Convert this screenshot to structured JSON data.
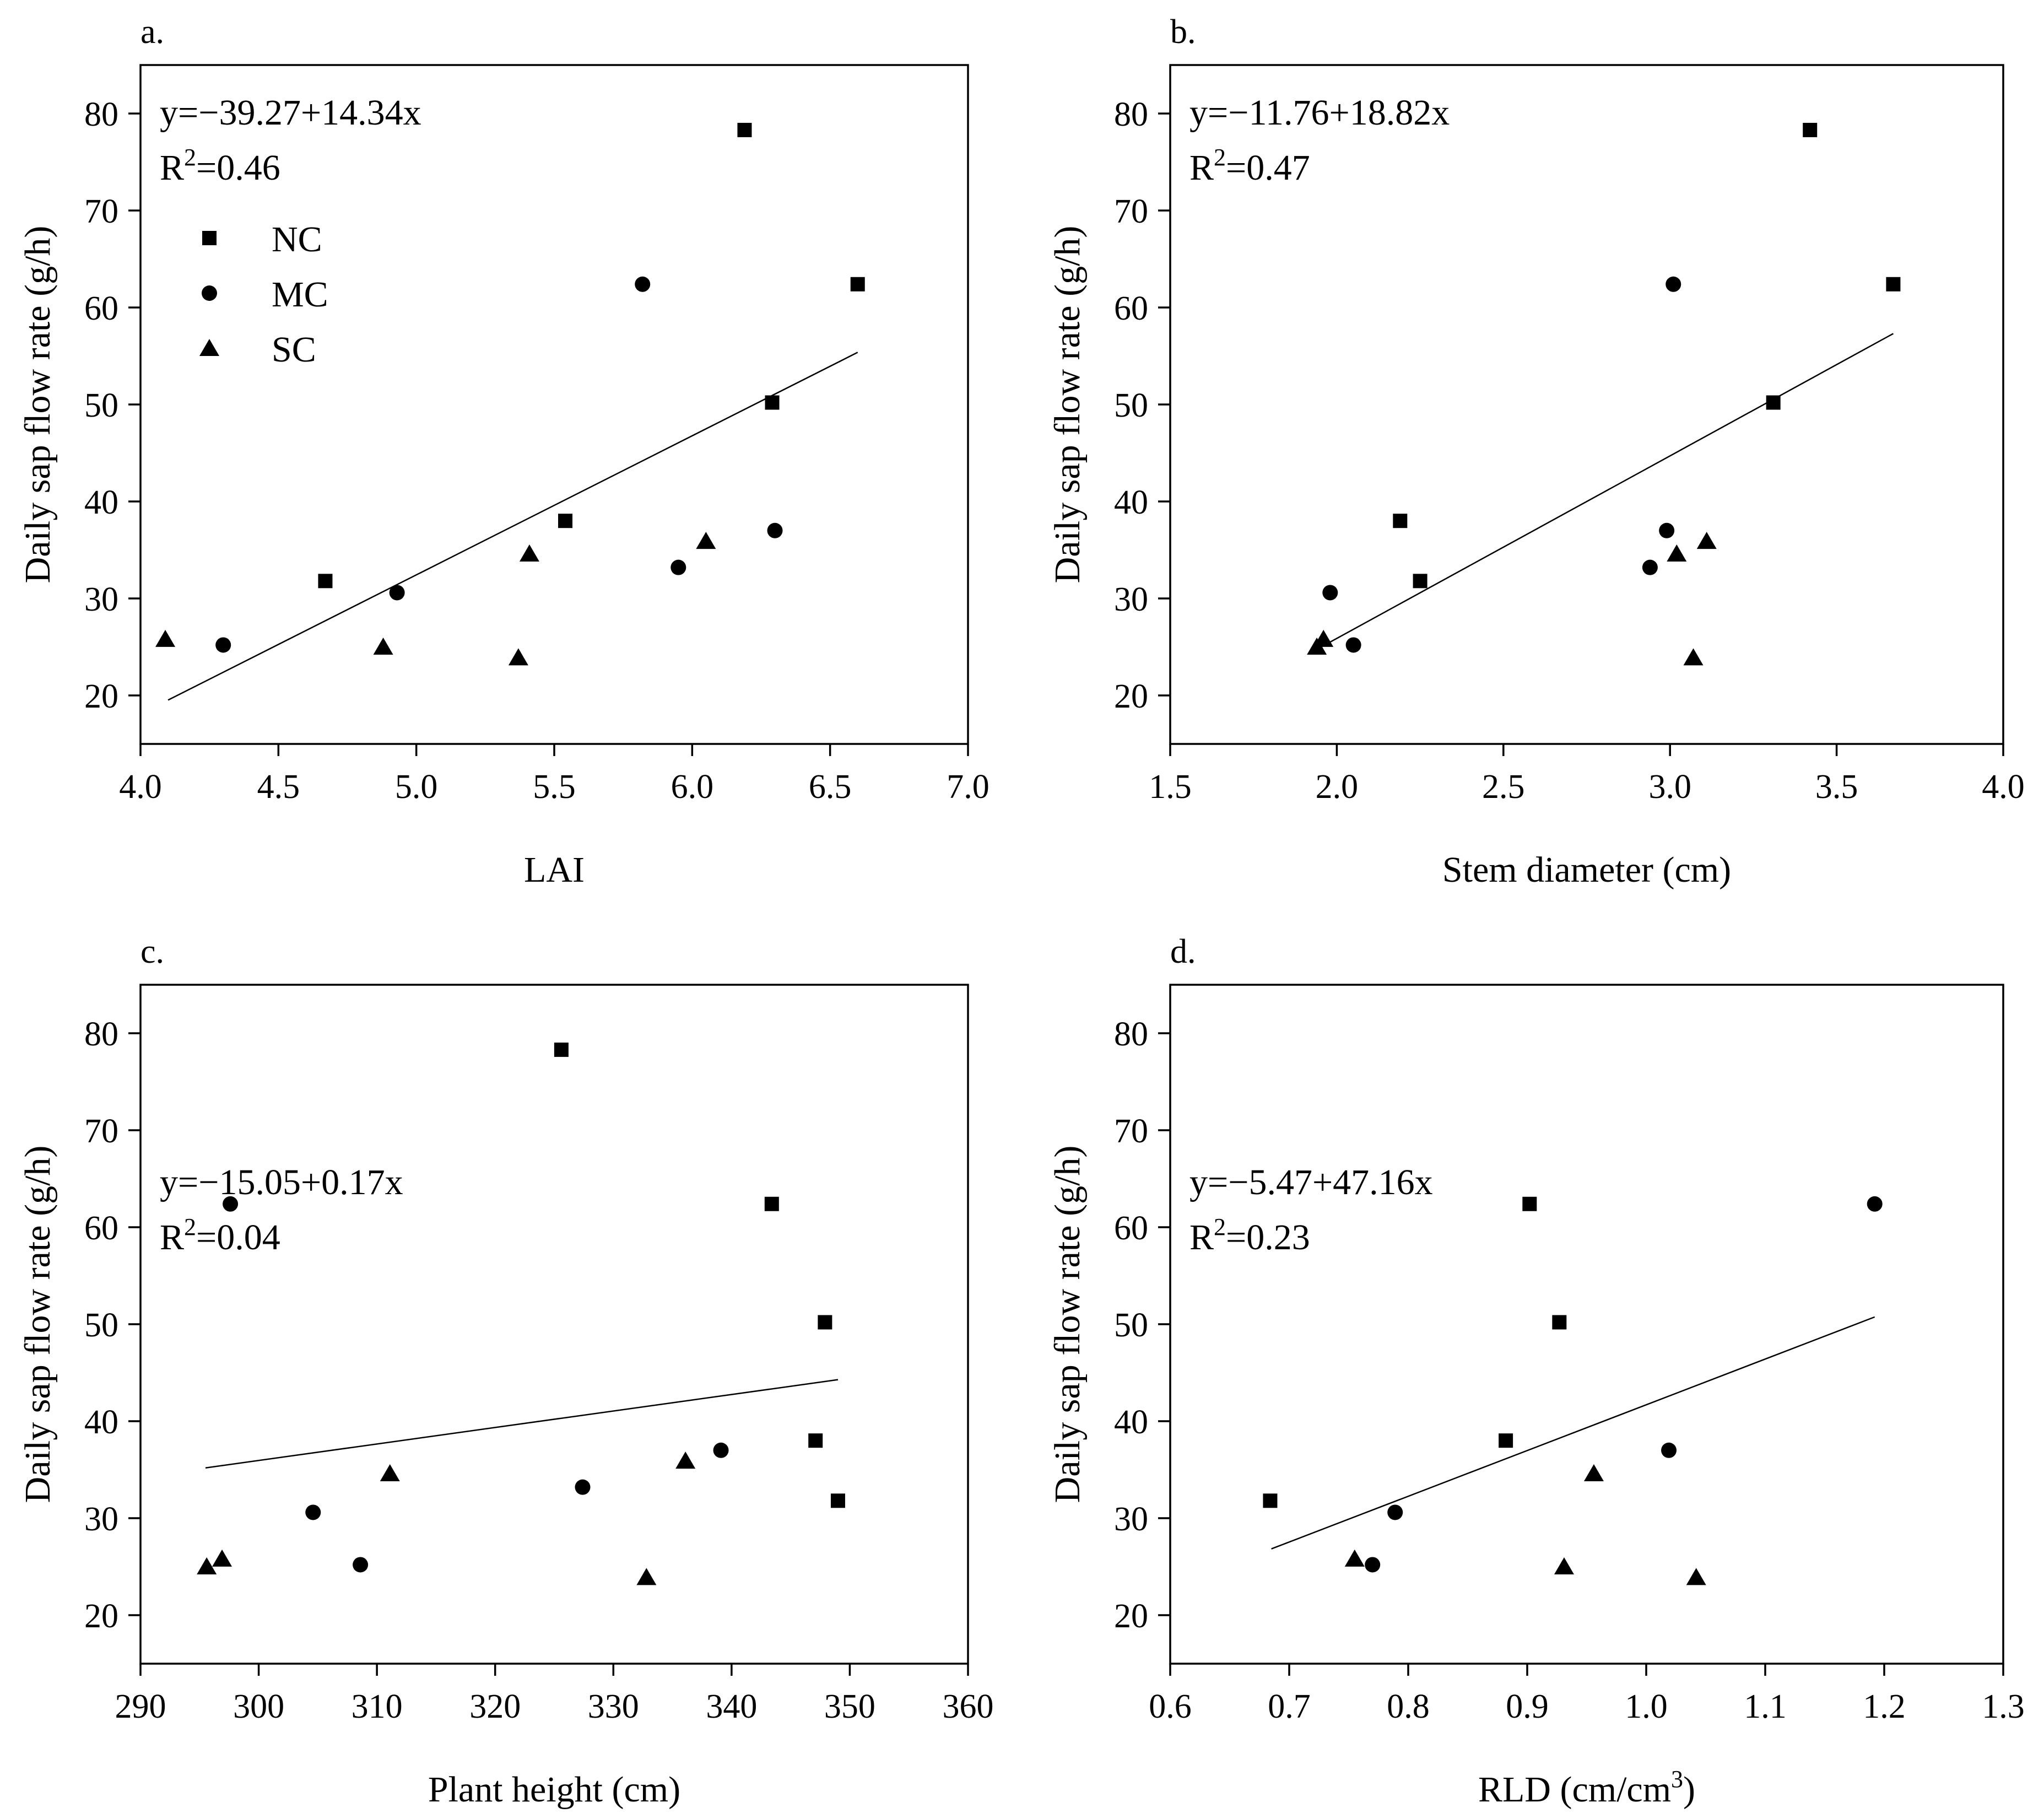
{
  "chart_data": [
    {
      "type": "scatter",
      "panel": "a.",
      "xlabel": "LAI",
      "ylabel": "Daily sap flow rate (g/h)",
      "xlim": [
        4.0,
        7.0
      ],
      "ylim": [
        15,
        85
      ],
      "xticks": [
        "4.0",
        "4.5",
        "5.0",
        "5.5",
        "6.0",
        "6.5",
        "7.0"
      ],
      "yticks": [
        "20",
        "30",
        "40",
        "50",
        "60",
        "70",
        "80"
      ],
      "equation": "y=−39.27+14.34x",
      "r2_label": "R",
      "r2_sup": "2",
      "r2_value": "=0.46",
      "fit_line": {
        "intercept": -39.27,
        "slope": 14.34,
        "x_range": [
          4.1,
          6.6
        ]
      },
      "legend": [
        {
          "label": "NC",
          "marker": "square"
        },
        {
          "label": "MC",
          "marker": "circle"
        },
        {
          "label": "SC",
          "marker": "triangle"
        }
      ],
      "series": [
        {
          "name": "NC",
          "marker": "square",
          "points": [
            [
              4.67,
              31.8
            ],
            [
              5.54,
              38.0
            ],
            [
              6.19,
              78.3
            ],
            [
              6.29,
              50.2
            ],
            [
              6.6,
              62.4
            ]
          ]
        },
        {
          "name": "MC",
          "marker": "circle",
          "points": [
            [
              4.3,
              25.2
            ],
            [
              4.93,
              30.6
            ],
            [
              5.82,
              62.4
            ],
            [
              5.95,
              33.2
            ],
            [
              6.3,
              37.0
            ]
          ]
        },
        {
          "name": "SC",
          "marker": "triangle",
          "points": [
            [
              4.09,
              25.8
            ],
            [
              4.88,
              25.0
            ],
            [
              5.37,
              23.9
            ],
            [
              5.41,
              34.6
            ],
            [
              6.05,
              35.9
            ]
          ]
        }
      ]
    },
    {
      "type": "scatter",
      "panel": "b.",
      "xlabel": "Stem diameter (cm)",
      "ylabel": "Daily sap flow rate (g/h)",
      "xlim": [
        1.5,
        4.0
      ],
      "ylim": [
        15,
        85
      ],
      "xticks": [
        "1.5",
        "2.0",
        "2.5",
        "3.0",
        "3.5",
        "4.0"
      ],
      "yticks": [
        "20",
        "30",
        "40",
        "50",
        "60",
        "70",
        "80"
      ],
      "equation": "y=−11.76+18.82x",
      "r2_label": "R",
      "r2_sup": "2",
      "r2_value": "=0.47",
      "fit_line": {
        "intercept": -11.76,
        "slope": 18.82,
        "x_range": [
          1.95,
          3.67
        ]
      },
      "series": [
        {
          "name": "NC",
          "marker": "square",
          "points": [
            [
              2.19,
              38.0
            ],
            [
              2.25,
              31.8
            ],
            [
              3.31,
              50.2
            ],
            [
              3.42,
              78.3
            ],
            [
              3.67,
              62.4
            ]
          ]
        },
        {
          "name": "MC",
          "marker": "circle",
          "points": [
            [
              1.98,
              30.6
            ],
            [
              2.05,
              25.2
            ],
            [
              2.94,
              33.2
            ],
            [
              2.99,
              37.0
            ],
            [
              3.01,
              62.4
            ]
          ]
        },
        {
          "name": "SC",
          "marker": "triangle",
          "points": [
            [
              1.94,
              25.0
            ],
            [
              1.96,
              25.8
            ],
            [
              3.02,
              34.6
            ],
            [
              3.07,
              23.9
            ],
            [
              3.11,
              35.9
            ]
          ]
        }
      ]
    },
    {
      "type": "scatter",
      "panel": "c.",
      "xlabel": "Plant height (cm)",
      "ylabel": "Daily sap flow rate (g/h)",
      "xlim": [
        290,
        360
      ],
      "ylim": [
        15,
        85
      ],
      "xticks": [
        "290",
        "300",
        "310",
        "320",
        "330",
        "340",
        "350",
        "360"
      ],
      "yticks": [
        "20",
        "30",
        "40",
        "50",
        "60",
        "70",
        "80"
      ],
      "equation": "y=−15.05+0.17x",
      "r2_label": "R",
      "r2_sup": "2",
      "r2_value": "=0.04",
      "fit_line": {
        "intercept": -15.05,
        "slope": 0.17,
        "x_range": [
          295.5,
          349
        ]
      },
      "series": [
        {
          "name": "NC",
          "marker": "square",
          "points": [
            [
              325.6,
              78.3
            ],
            [
              343.4,
              62.4
            ],
            [
              347.9,
              50.2
            ],
            [
              347.1,
              38.0
            ],
            [
              349.0,
              31.8
            ]
          ]
        },
        {
          "name": "MC",
          "marker": "circle",
          "points": [
            [
              297.6,
              62.4
            ],
            [
              304.6,
              30.6
            ],
            [
              308.6,
              25.2
            ],
            [
              327.4,
              33.2
            ],
            [
              339.1,
              37.0
            ]
          ]
        },
        {
          "name": "SC",
          "marker": "triangle",
          "points": [
            [
              295.6,
              25.0
            ],
            [
              296.9,
              25.8
            ],
            [
              311.1,
              34.6
            ],
            [
              332.8,
              23.9
            ],
            [
              336.1,
              35.9
            ]
          ]
        }
      ]
    },
    {
      "type": "scatter",
      "panel": "d.",
      "xlabel": "RLD (cm/cm",
      "xlabel_sup": "3",
      "xlabel_end": ")",
      "ylabel": "Daily sap flow rate (g/h)",
      "xlim": [
        0.6,
        1.3
      ],
      "ylim": [
        15,
        85
      ],
      "xticks": [
        "0.6",
        "0.7",
        "0.8",
        "0.9",
        "1.0",
        "1.1",
        "1.2",
        "1.3"
      ],
      "yticks": [
        "20",
        "30",
        "40",
        "50",
        "60",
        "70",
        "80"
      ],
      "equation": "y=−5.47+47.16x",
      "r2_label": "R",
      "r2_sup": "2",
      "r2_value": "=0.23",
      "fit_line": {
        "intercept": -5.47,
        "slope": 47.16,
        "x_range": [
          0.685,
          1.192
        ]
      },
      "series": [
        {
          "name": "NC",
          "marker": "square",
          "points": [
            [
              0.684,
              31.8
            ],
            [
              0.882,
              38.0
            ],
            [
              0.902,
              62.4
            ],
            [
              0.927,
              50.2
            ]
          ]
        },
        {
          "name": "MC",
          "marker": "circle",
          "points": [
            [
              0.77,
              25.2
            ],
            [
              0.789,
              30.6
            ],
            [
              1.019,
              37.0
            ],
            [
              1.192,
              62.4
            ]
          ]
        },
        {
          "name": "SC",
          "marker": "triangle",
          "points": [
            [
              0.755,
              25.8
            ],
            [
              0.931,
              25.0
            ],
            [
              0.956,
              34.6
            ],
            [
              1.042,
              23.9
            ]
          ]
        }
      ]
    }
  ]
}
